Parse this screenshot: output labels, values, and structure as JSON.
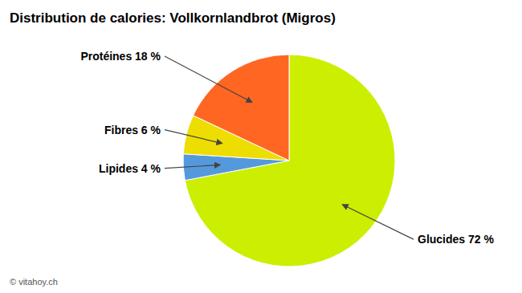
{
  "chart_data": {
    "type": "pie",
    "title": "Distribution de calories: Vollkornlandbrot (Migros)",
    "categories": [
      "Glucides 72 %",
      "Lipides 4 %",
      "Fibres 6 %",
      "Protéines 18 %"
    ],
    "values": [
      72,
      4,
      6,
      18
    ],
    "colors": [
      "#CCEE00",
      "#5599DD",
      "#EEDD00",
      "#FF6622"
    ],
    "annotations": [
      "© vitahoy.ch"
    ]
  }
}
